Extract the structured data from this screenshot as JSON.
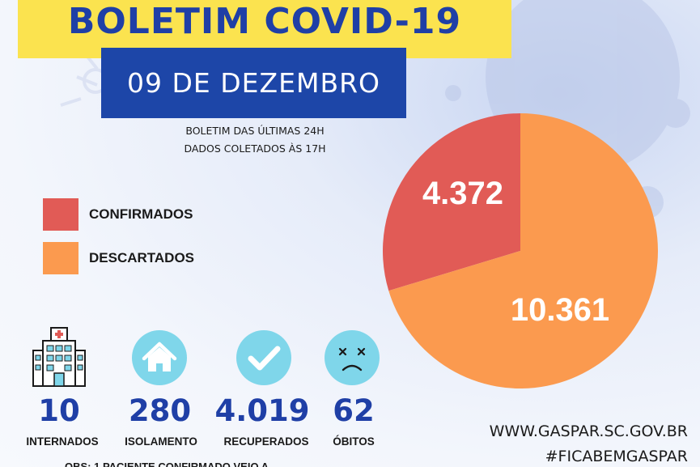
{
  "header": {
    "title": "BOLETIM COVID-19",
    "date": "09 DE DEZEMBRO",
    "subtitle_line1": "BOLETIM DAS ÚLTIMAS 24H",
    "subtitle_line2": "DADOS COLETADOS ÀS  17H"
  },
  "chart_data": {
    "type": "pie",
    "slices": [
      {
        "label": "CONFIRMADOS",
        "value": 4372,
        "value_text": "4.372",
        "color": "#e15b56"
      },
      {
        "label": "DESCARTADOS",
        "value": 10361,
        "value_text": "10.361",
        "color": "#fb9a4f"
      }
    ],
    "legend_position": "left"
  },
  "stats": [
    {
      "value": "10",
      "label": "INTERNADOS",
      "icon": "hospital-icon"
    },
    {
      "value": "280",
      "label": "ISOLAMENTO",
      "icon": "house-icon"
    },
    {
      "value": "4.019",
      "label": "RECUPERADOS",
      "icon": "checkmark-icon"
    },
    {
      "value": "62",
      "label": "ÓBITOS",
      "icon": "sad-face-icon"
    }
  ],
  "footer": {
    "url": "WWW.GASPAR.SC.GOV.BR",
    "hashtag": "#FICABEMGASPAR",
    "note": "OBS: 1 PACIENTE CONFIRMADO VEIO A"
  },
  "colors": {
    "title_banner": "#fbe34f",
    "date_banner": "#1d46a8",
    "stat_blue": "#1f3fa6",
    "icon_circle": "#7fd6ea"
  }
}
